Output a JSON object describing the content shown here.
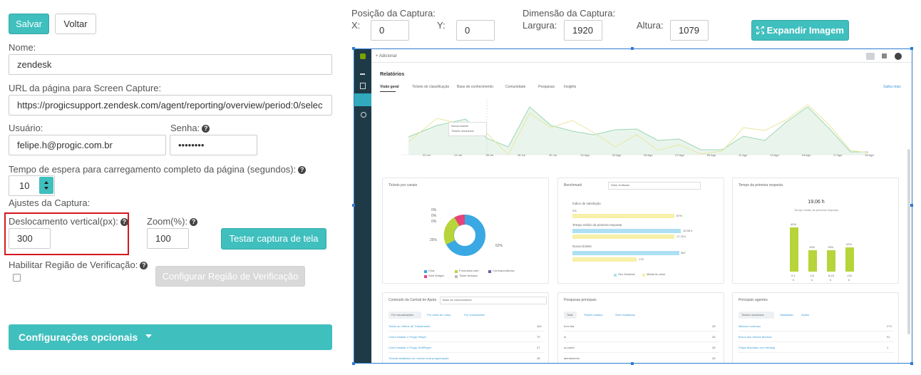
{
  "toolbar": {
    "save_label": "Salvar",
    "back_label": "Voltar"
  },
  "form": {
    "name_label": "Nome:",
    "name_value": "zendesk",
    "url_label": "URL da página para Screen Capture:",
    "url_value": "https://progicsupport.zendesk.com/agent/reporting/overview/period:0/selec",
    "user_label": "Usuário:",
    "user_value": "felipe.h@progic.com.br",
    "password_label": "Senha:",
    "password_value": "••••••••",
    "wait_label": "Tempo de espera para carregamento completo da página (segundos):",
    "wait_value": "10",
    "capture_settings_label": "Ajustes da Captura:",
    "vertical_offset_label": "Deslocamento vertical(px):",
    "vertical_offset_value": "300",
    "zoom_label": "Zoom(%):",
    "zoom_value": "100",
    "test_capture_label": "Testar captura de tela",
    "verification_label": "Habilitar Região de Verificação:",
    "configure_region_label": "Configurar Região de Verificação",
    "optional_label": "Configurações opcionais"
  },
  "capture": {
    "position_label": "Posição da Captura:",
    "x_label": "X:",
    "x_value": "0",
    "y_label": "Y:",
    "y_value": "0",
    "dimension_label": "Dimensão da Captura:",
    "width_label": "Largura:",
    "width_value": "1920",
    "height_label": "Altura:",
    "height_value": "1079",
    "expand_label": "Expandir Imagem"
  },
  "preview": {
    "add_label": "+ Adicionar",
    "page_title": "Relatórios",
    "tabs": [
      "Visão geral",
      "Tickets de classificação",
      "Base de conhecimento",
      "Comunidade",
      "Pesquisas",
      "Insights"
    ],
    "learn_more": "Saiba mais",
    "x_ticks": [
      "22 Jul",
      "24 Jul",
      "26 Jul",
      "28 Jul",
      "30 Jul",
      "01 Ago",
      "03 Ago",
      "05 Ago",
      "07 Ago",
      "09 Ago",
      "11 Ago",
      "13 Ago",
      "15 Ago",
      "17 Ago",
      "19 Ago"
    ],
    "legend_novos": "Novos tickets",
    "legend_resolvidos": "Tickets resolvidos",
    "cards": {
      "channels_title": "Tickets por canais",
      "benchmark_title": "Benchmark",
      "benchmark_select": "Setor Software",
      "first_response_title": "Tempo da primeira resposta",
      "help_center_title": "Conteúdo da Central de Ajuda",
      "help_center_search": "Base de conhecimento",
      "searches_title": "Pesquisas principais",
      "agents_title": "Principais agentes"
    },
    "pie_labels": [
      "0%",
      "0%",
      "0%",
      "25%",
      "62%"
    ],
    "pie_legend": [
      "Chat",
      "Formulário web",
      "Correspondência",
      "Web Widget",
      "Ticket fechado"
    ],
    "benchmark": {
      "satisfaction_label": "Índice de satisfação",
      "satisfaction_a": "0%",
      "satisfaction_b": "87%",
      "first_reply_label": "Tempo médio da primeira resposta",
      "first_reply_a": "19,06 h",
      "first_reply_b": "17,76 h",
      "new_tickets_label": "Novos tickets",
      "new_tickets_a": "387",
      "new_tickets_b": "175",
      "legend_a": "Seu Zendesk",
      "legend_b": "Média do setor"
    },
    "first_response": {
      "value": "19,06 h",
      "caption": "Tempo médio da primeira resposta",
      "bars": [
        {
          "pct": "40%",
          "range": "0-1",
          "unit": "h"
        },
        {
          "pct": "19%",
          "range": "1-8",
          "unit": "h"
        },
        {
          "pct": "19%",
          "range": "8-24",
          "unit": "h"
        },
        {
          "pct": "22%",
          "range": ">24",
          "unit": "h"
        }
      ]
    },
    "help_tabs": [
      "Por visualizações",
      "Por votos de votos",
      "Por comentários"
    ],
    "help_rows": [
      {
        "title": "Todos os Vídeos de Treinamento",
        "value": "162"
      },
      {
        "title": "Como instalar o Progic Player",
        "value": "79"
      },
      {
        "title": "Como instalar o Progic SoftPlayer",
        "value": "47"
      },
      {
        "title": "Tutorial detalhado de montar uma programação",
        "value": "28"
      }
    ],
    "search_tabs": [
      "Total",
      "Tickets criados",
      "Sem resultados"
    ],
    "search_rows": [
      {
        "term": "bom dia",
        "value": "28"
      },
      {
        "term": "oi",
        "value": "26"
      },
      {
        "term": "ou parte",
        "value": "28"
      },
      {
        "term": "atendimento",
        "value": "28"
      }
    ],
    "agent_tabs": [
      "Tickets resolvidos",
      "Satisfação",
      "Ações"
    ],
    "agent_rows": [
      {
        "name": "Marcos Lourenço",
        "value": "273"
      },
      {
        "name": "Bruno dos Santos Moreira",
        "value": "91"
      },
      {
        "name": "Felipe Machado von Hertwig",
        "value": "1"
      }
    ]
  },
  "colors": {
    "accent": "#3fbfbe",
    "highlight": "#d4181f",
    "selection": "#2e7bcf"
  }
}
